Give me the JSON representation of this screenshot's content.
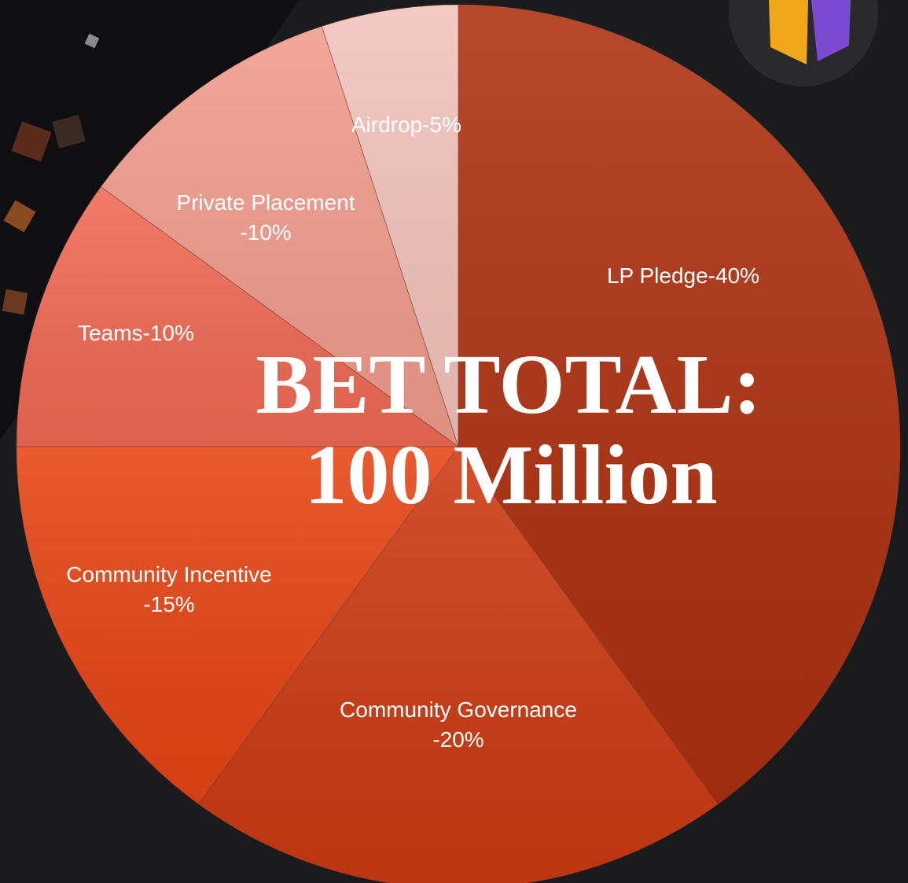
{
  "chart_data": {
    "type": "pie",
    "title": "BET TOTAL:",
    "subtitle": "100 Million",
    "categories": [
      "LP Pledge",
      "Community Governance",
      "Community Incentive",
      "Teams",
      "Private Placement",
      "Airdrop"
    ],
    "values": [
      40,
      20,
      15,
      10,
      10,
      5
    ],
    "value_labels": [
      "-40%",
      "-20%",
      "-15%",
      "-10%",
      "-10%",
      "-5%"
    ],
    "colors": [
      "#ad3010",
      "#cc3a12",
      "#e64414",
      "#f06a55",
      "#f19c8d",
      "#f4c3bc"
    ]
  }
}
